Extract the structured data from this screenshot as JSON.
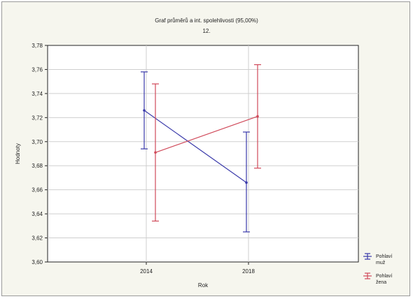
{
  "chart_data": {
    "type": "line",
    "title": "Graf průměrů a int. spolehlivosti (95,00%)",
    "subtitle": "12.",
    "xlabel": "Rok",
    "ylabel": "Hodnoty",
    "categories": [
      "2014",
      "2018"
    ],
    "ylim": [
      3.6,
      3.78
    ],
    "yticks": [
      "3,60",
      "3,62",
      "3,64",
      "3,66",
      "3,68",
      "3,70",
      "3,72",
      "3,74",
      "3,76",
      "3,78"
    ],
    "grid": true,
    "legend_position": "bottom-right",
    "series": [
      {
        "name": "Pohlaví muž",
        "color": "#3a3aaa",
        "values": [
          3.726,
          3.666
        ],
        "lower": [
          3.694,
          3.625
        ],
        "upper": [
          3.758,
          3.708
        ]
      },
      {
        "name": "Pohlaví žena",
        "color": "#d04a5a",
        "values": [
          3.691,
          3.721
        ],
        "lower": [
          3.634,
          3.678
        ],
        "upper": [
          3.748,
          3.764
        ]
      }
    ]
  }
}
